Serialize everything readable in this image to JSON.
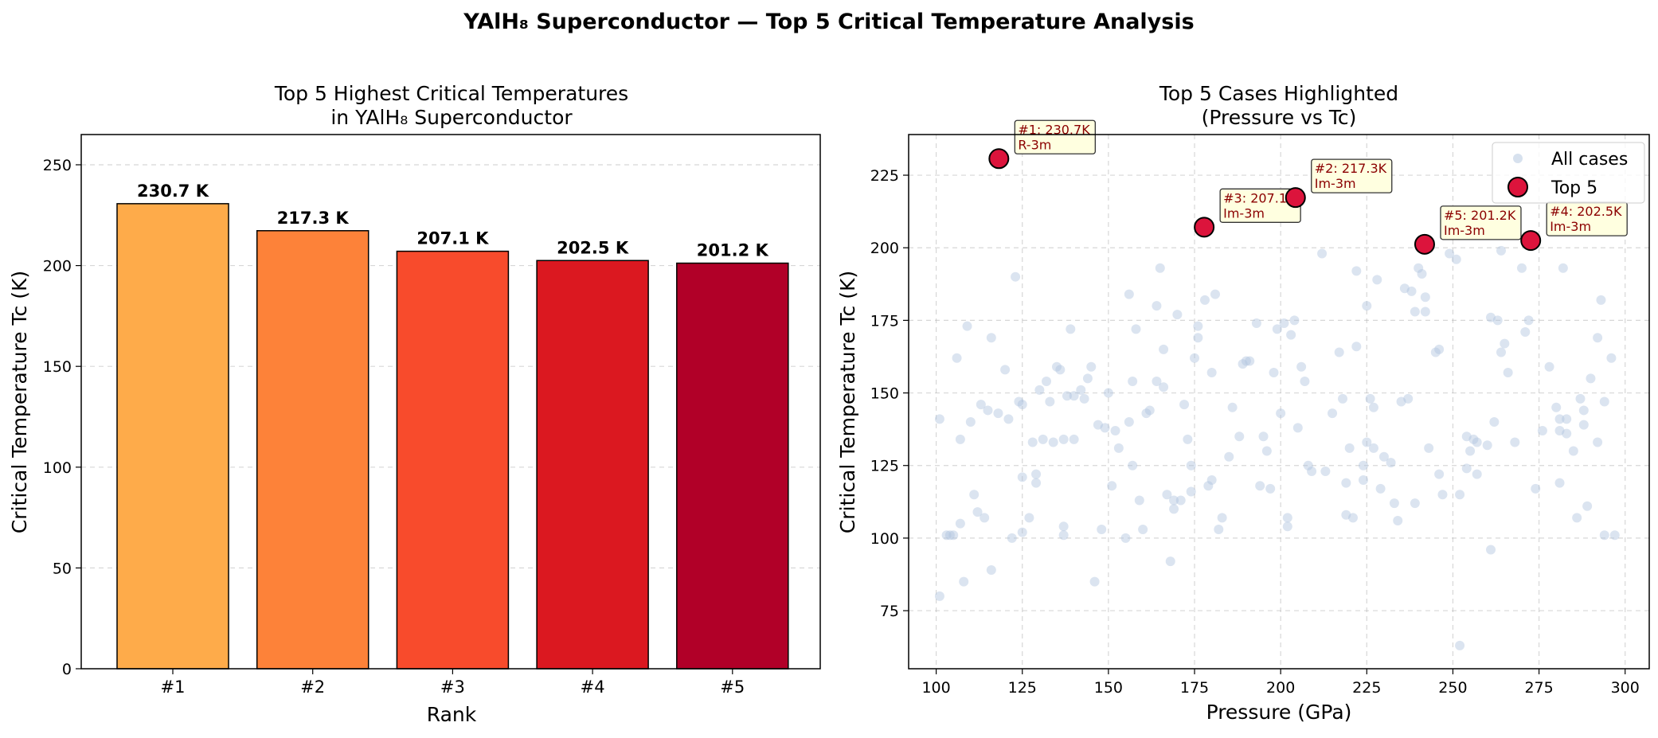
{
  "suptitle": "YAlH₈ Superconductor — Top 5 Critical Temperature Analysis",
  "chart_data": [
    {
      "type": "bar",
      "title_line1": "Top 5 Highest Critical Temperatures",
      "title_line2": "in YAlH₈ Superconductor",
      "xlabel": "Rank",
      "ylabel": "Critical Temperature Tc (K)",
      "categories": [
        "#1",
        "#2",
        "#3",
        "#4",
        "#5"
      ],
      "values": [
        230.7,
        217.3,
        207.1,
        202.5,
        201.2
      ],
      "value_labels": [
        "230.7 K",
        "217.3 K",
        "207.1 K",
        "202.5 K",
        "201.2 K"
      ],
      "bar_colors": [
        "#feab4a",
        "#fd8239",
        "#f84b2c",
        "#db1820",
        "#b10028"
      ],
      "ylim": [
        0,
        265
      ],
      "yticks": [
        "0",
        "50",
        "100",
        "150",
        "200",
        "250"
      ],
      "grid": "y, dashed"
    },
    {
      "type": "scatter",
      "title_line1": "Top 5 Cases Highlighted",
      "title_line2": "(Pressure vs Tc)",
      "xlabel": "Pressure (GPa)",
      "ylabel": "Critical Temperature Tc (K)",
      "xlim": [
        92,
        307
      ],
      "ylim": [
        55,
        239
      ],
      "xticks": [
        "100",
        "125",
        "150",
        "175",
        "200",
        "225",
        "250",
        "275",
        "300"
      ],
      "yticks": [
        "75",
        "100",
        "125",
        "150",
        "175",
        "200",
        "225"
      ],
      "grid": "both, dashed",
      "legend_position": "top-right",
      "series": [
        {
          "name": "All cases",
          "color": "#b0c4de",
          "points": [
            [
              101,
              141
            ],
            [
              101,
              80
            ],
            [
              103,
              101
            ],
            [
              104,
              101
            ],
            [
              105,
              101
            ],
            [
              106,
              162
            ],
            [
              107,
              134
            ],
            [
              107,
              105
            ],
            [
              108,
              85
            ],
            [
              109,
              173
            ],
            [
              110,
              140
            ],
            [
              111,
              115
            ],
            [
              112,
              109
            ],
            [
              113,
              146
            ],
            [
              114,
              107
            ],
            [
              115,
              144
            ],
            [
              116,
              89
            ],
            [
              116,
              169
            ],
            [
              118,
              143
            ],
            [
              120,
              158
            ],
            [
              121,
              141
            ],
            [
              122,
              100
            ],
            [
              123,
              190
            ],
            [
              124,
              147
            ],
            [
              125,
              102
            ],
            [
              125,
              121
            ],
            [
              125,
              146
            ],
            [
              127,
              107
            ],
            [
              128,
              133
            ],
            [
              129,
              119
            ],
            [
              129,
              122
            ],
            [
              130,
              151
            ],
            [
              131,
              134
            ],
            [
              132,
              154
            ],
            [
              133,
              147
            ],
            [
              134,
              133
            ],
            [
              135,
              159
            ],
            [
              136,
              158
            ],
            [
              137,
              134
            ],
            [
              137,
              104
            ],
            [
              137,
              101
            ],
            [
              138,
              149
            ],
            [
              139,
              172
            ],
            [
              140,
              134
            ],
            [
              140,
              149
            ],
            [
              142,
              151
            ],
            [
              143,
              148
            ],
            [
              144,
              155
            ],
            [
              145,
              159
            ],
            [
              146,
              85
            ],
            [
              147,
              139
            ],
            [
              148,
              103
            ],
            [
              149,
              138
            ],
            [
              150,
              150
            ],
            [
              151,
              118
            ],
            [
              152,
              137
            ],
            [
              153,
              131
            ],
            [
              155,
              100
            ],
            [
              156,
              140
            ],
            [
              156,
              184
            ],
            [
              157,
              154
            ],
            [
              157,
              125
            ],
            [
              158,
              172
            ],
            [
              159,
              113
            ],
            [
              160,
              103
            ],
            [
              161,
              143
            ],
            [
              162,
              144
            ],
            [
              164,
              154
            ],
            [
              164,
              180
            ],
            [
              165,
              193
            ],
            [
              166,
              165
            ],
            [
              166,
              152
            ],
            [
              167,
              115
            ],
            [
              168,
              92
            ],
            [
              169,
              113
            ],
            [
              169,
              110
            ],
            [
              170,
              177
            ],
            [
              171,
              113
            ],
            [
              172,
              146
            ],
            [
              173,
              134
            ],
            [
              174,
              116
            ],
            [
              174,
              125
            ],
            [
              175,
              162
            ],
            [
              176,
              169
            ],
            [
              176,
              173
            ],
            [
              178,
              182
            ],
            [
              179,
              118
            ],
            [
              180,
              120
            ],
            [
              180,
              157
            ],
            [
              181,
              184
            ],
            [
              182,
              103
            ],
            [
              183,
              107
            ],
            [
              185,
              128
            ],
            [
              186,
              145
            ],
            [
              188,
              135
            ],
            [
              189,
              160
            ],
            [
              190,
              161
            ],
            [
              191,
              161
            ],
            [
              193,
              174
            ],
            [
              194,
              118
            ],
            [
              195,
              135
            ],
            [
              196,
              130
            ],
            [
              197,
              117
            ],
            [
              198,
              157
            ],
            [
              199,
              172
            ],
            [
              200,
              143
            ],
            [
              201,
              174
            ],
            [
              202,
              104
            ],
            [
              202,
              107
            ],
            [
              203,
              170
            ],
            [
              204,
              175
            ],
            [
              205,
              138
            ],
            [
              206,
              159
            ],
            [
              207,
              154
            ],
            [
              208,
              125
            ],
            [
              209,
              123
            ],
            [
              212,
              198
            ],
            [
              213,
              123
            ],
            [
              215,
              143
            ],
            [
              217,
              164
            ],
            [
              218,
              148
            ],
            [
              219,
              119
            ],
            [
              219,
              108
            ],
            [
              220,
              131
            ],
            [
              221,
              107
            ],
            [
              222,
              192
            ],
            [
              222,
              166
            ],
            [
              224,
              125
            ],
            [
              224,
              120
            ],
            [
              225,
              133
            ],
            [
              225,
              180
            ],
            [
              226,
              148
            ],
            [
              227,
              145
            ],
            [
              227,
              131
            ],
            [
              228,
              189
            ],
            [
              229,
              117
            ],
            [
              230,
              128
            ],
            [
              232,
              126
            ],
            [
              233,
              112
            ],
            [
              234,
              106
            ],
            [
              235,
              147
            ],
            [
              236,
              186
            ],
            [
              237,
              148
            ],
            [
              238,
              185
            ],
            [
              239,
              178
            ],
            [
              239,
              112
            ],
            [
              240,
              193
            ],
            [
              241,
              191
            ],
            [
              242,
              183
            ],
            [
              242,
              178
            ],
            [
              243,
              131
            ],
            [
              245,
              164
            ],
            [
              246,
              122
            ],
            [
              246,
              165
            ],
            [
              247,
              115
            ],
            [
              249,
              198
            ],
            [
              251,
              196
            ],
            [
              252,
              115
            ],
            [
              252,
              63
            ],
            [
              254,
              124
            ],
            [
              254,
              135
            ],
            [
              255,
              130
            ],
            [
              256,
              134
            ],
            [
              257,
              133
            ],
            [
              257,
              122
            ],
            [
              260,
              132
            ],
            [
              261,
              96
            ],
            [
              261,
              176
            ],
            [
              262,
              140
            ],
            [
              263,
              175
            ],
            [
              264,
              199
            ],
            [
              264,
              164
            ],
            [
              265,
              167
            ],
            [
              266,
              157
            ],
            [
              268,
              133
            ],
            [
              270,
              193
            ],
            [
              271,
              171
            ],
            [
              272,
              175
            ],
            [
              274,
              117
            ],
            [
              276,
              137
            ],
            [
              278,
              159
            ],
            [
              280,
              145
            ],
            [
              281,
              141
            ],
            [
              281,
              137
            ],
            [
              281,
              119
            ],
            [
              282,
              193
            ],
            [
              283,
              141
            ],
            [
              283,
              136
            ],
            [
              285,
              130
            ],
            [
              286,
              107
            ],
            [
              287,
              148
            ],
            [
              288,
              144
            ],
            [
              288,
              139
            ],
            [
              289,
              111
            ],
            [
              290,
              155
            ],
            [
              292,
              169
            ],
            [
              292,
              133
            ],
            [
              293,
              182
            ],
            [
              294,
              147
            ],
            [
              294,
              101
            ],
            [
              296,
              162
            ],
            [
              297,
              101
            ]
          ]
        },
        {
          "name": "Top 5",
          "color": "#dc143c",
          "points": [
            [
              118.2,
              230.7
            ],
            [
              204.3,
              217.3
            ],
            [
              177.8,
              207.1
            ],
            [
              272.6,
              202.5
            ],
            [
              241.8,
              201.2
            ]
          ]
        }
      ],
      "annotations": [
        {
          "line1": "#1: 230.7K",
          "line2": "R-3m"
        },
        {
          "line1": "#2: 217.3K",
          "line2": "Im-3m"
        },
        {
          "line1": "#3: 207.1K",
          "line2": "Im-3m"
        },
        {
          "line1": "#4: 202.5K",
          "line2": "Im-3m"
        },
        {
          "line1": "#5: 201.2K",
          "line2": "Im-3m"
        }
      ]
    }
  ]
}
